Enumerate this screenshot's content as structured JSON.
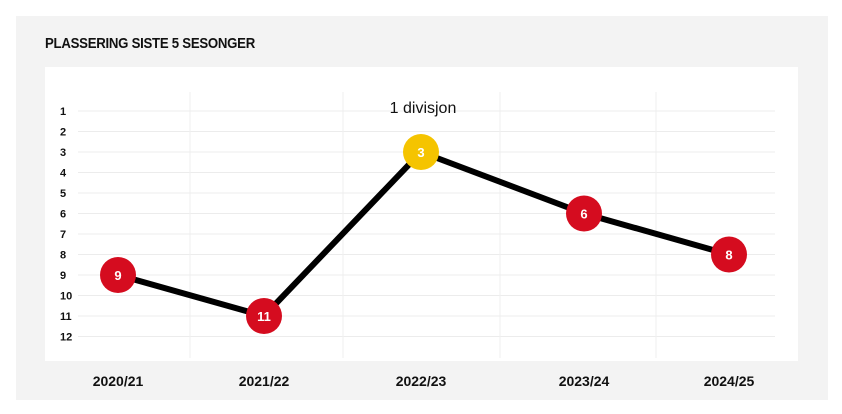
{
  "chart_data": {
    "type": "line",
    "title": "PLASSERING SISTE 5 SESONGER",
    "categories": [
      "2020/21",
      "2021/22",
      "2022/23",
      "2023/24",
      "2024/25"
    ],
    "series": [
      {
        "values": [
          9,
          11,
          3,
          6,
          8
        ],
        "point_colors": [
          "#d50c1f",
          "#d50c1f",
          "#f5c400",
          "#d50c1f",
          "#d50c1f"
        ]
      }
    ],
    "y_ticks": [
      "1",
      "2",
      "3",
      "4",
      "5",
      "6",
      "7",
      "8",
      "9",
      "10",
      "11",
      "12"
    ],
    "ylim": [
      1,
      12
    ],
    "y_inverted": true,
    "grid": true,
    "annotation": "1 divisjon",
    "colors": {
      "line": "#000000",
      "position_marker": "#d50c1f",
      "division_1_marker": "#f5c400",
      "panel_bg": "#f3f3f3",
      "plot_bg": "#ffffff"
    }
  }
}
